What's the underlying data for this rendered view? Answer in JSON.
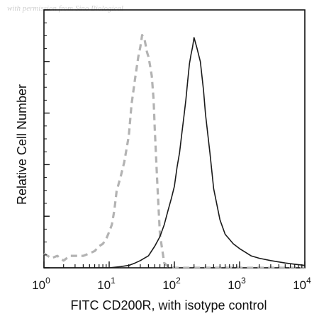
{
  "watermark": "with permission from Sino Biological",
  "chart_data": {
    "type": "line",
    "xlabel": "FITC CD200R, with isotype control",
    "ylabel": "Relative Cell Number",
    "x_scale": "log",
    "xlim": [
      1,
      10000
    ],
    "ylim": [
      0,
      1.0
    ],
    "x_ticks": [
      {
        "value": 1,
        "base": "10",
        "exp": "0"
      },
      {
        "value": 10,
        "base": "10",
        "exp": "1"
      },
      {
        "value": 100,
        "base": "10",
        "exp": "2"
      },
      {
        "value": 1000,
        "base": "10",
        "exp": "3"
      },
      {
        "value": 10000,
        "base": "10",
        "exp": "4"
      }
    ],
    "grid": false,
    "series": [
      {
        "style": "dashed",
        "color": "#b3b3b3",
        "x": [
          1,
          1.3,
          1.6,
          2,
          2.5,
          3,
          4,
          5,
          6,
          7,
          8,
          9,
          10,
          11,
          12,
          13,
          15,
          17,
          20,
          22,
          25,
          28,
          30,
          32,
          35,
          38,
          40,
          42,
          45,
          48,
          50,
          55,
          60,
          70,
          80,
          100,
          150,
          1000,
          10000
        ],
        "y": [
          0.06,
          0.04,
          0.05,
          0.03,
          0.05,
          0.05,
          0.05,
          0.06,
          0.07,
          0.09,
          0.1,
          0.12,
          0.15,
          0.18,
          0.24,
          0.32,
          0.38,
          0.44,
          0.55,
          0.68,
          0.79,
          0.88,
          0.92,
          0.97,
          0.95,
          0.9,
          0.88,
          0.85,
          0.8,
          0.7,
          0.58,
          0.34,
          0.14,
          0.02,
          0.005,
          0,
          0,
          0,
          0
        ]
      },
      {
        "style": "solid",
        "color": "#1a1a1a",
        "x": [
          1,
          5,
          10,
          15,
          20,
          25,
          30,
          40,
          50,
          60,
          70,
          80,
          90,
          100,
          110,
          120,
          130,
          140,
          150,
          160,
          170,
          180,
          190,
          200,
          220,
          250,
          280,
          300,
          350,
          400,
          500,
          600,
          800,
          1000,
          1500,
          2000,
          3000,
          5000,
          7000,
          10000
        ],
        "y": [
          0,
          0.0,
          0.0,
          0.005,
          0.01,
          0.02,
          0.03,
          0.05,
          0.09,
          0.13,
          0.18,
          0.24,
          0.29,
          0.34,
          0.42,
          0.48,
          0.56,
          0.63,
          0.7,
          0.78,
          0.85,
          0.89,
          0.92,
          0.96,
          0.92,
          0.86,
          0.74,
          0.64,
          0.48,
          0.33,
          0.2,
          0.14,
          0.1,
          0.08,
          0.05,
          0.04,
          0.03,
          0.02,
          0.015,
          0.01
        ]
      }
    ]
  }
}
